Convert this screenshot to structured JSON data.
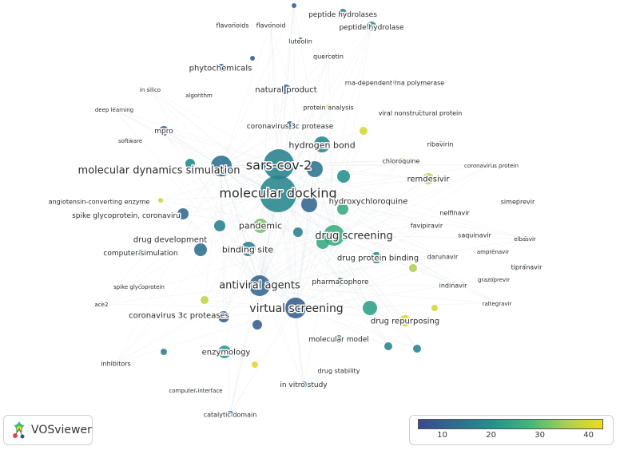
{
  "app": "VOSviewer",
  "colors": {
    "viridis": [
      "#3b4a8f",
      "#2f6c8e",
      "#21918c",
      "#3fb77b",
      "#a7cf54",
      "#f0dc1e"
    ],
    "link": "#cfd6dc"
  },
  "legend": {
    "min": 5,
    "max": 43,
    "ticks": [
      "10",
      "20",
      "30",
      "40"
    ]
  },
  "nodes": [
    {
      "id": "molecular-docking",
      "label": "molecular docking",
      "v": 18
    },
    {
      "id": "sars-cov-2",
      "label": "sars-cov-2",
      "v": 17
    },
    {
      "id": "molecular-dynamics-simulation",
      "label": "molecular dynamics simulation",
      "v": 13
    },
    {
      "id": "virtual-screening",
      "label": "virtual screening",
      "v": 10
    },
    {
      "id": "antiviral-agents",
      "label": "antiviral agents",
      "v": 11
    },
    {
      "id": "drug-screening",
      "label": "drug screening",
      "v": 26
    },
    {
      "id": "hydrogen-bond",
      "label": "hydrogen bond",
      "v": 18
    },
    {
      "id": "pandemic",
      "label": "pandemic",
      "v": 32
    },
    {
      "id": "binding-site",
      "label": "binding site",
      "v": 17
    },
    {
      "id": "drug-development",
      "label": "drug development",
      "v": 13
    },
    {
      "id": "drug-repurposing",
      "label": "drug repurposing",
      "v": 40
    },
    {
      "id": "hydroxychloroquine",
      "label": "hydroxychloroquine",
      "v": 25
    },
    {
      "id": "remdesivir",
      "label": "remdesivir",
      "v": 38
    },
    {
      "id": "drug-protein-binding",
      "label": "drug protein binding",
      "v": 19
    },
    {
      "id": "coronavirus-3c-proteases",
      "label": "coronavirus 3c proteases",
      "v": 9
    },
    {
      "id": "enzymology",
      "label": "enzymology",
      "v": 22
    },
    {
      "id": "spike-glycoprotein-coronavirus",
      "label": "spike glycoprotein, coronaviru",
      "v": 11
    },
    {
      "id": "computer-simulation",
      "label": "computer simulation",
      "v": 17
    },
    {
      "id": "pharmacophore",
      "label": "pharmacophore",
      "v": 16
    },
    {
      "id": "natural-product",
      "label": "natural product",
      "v": 11
    },
    {
      "id": "coronavirus-3c-protease",
      "label": "coronavirus 3c protease",
      "v": 12
    },
    {
      "id": "phytochemicals",
      "label": "phytochemicals",
      "v": 10
    },
    {
      "id": "mpro",
      "label": "mpro",
      "v": 9
    },
    {
      "id": "peptide-hydrolases",
      "label": "peptide hydrolases",
      "v": 16
    },
    {
      "id": "peptide-hydrolase",
      "label": "peptide hydrolase",
      "v": 19
    },
    {
      "id": "flavonoids",
      "label": "flavonoids",
      "v": 8
    },
    {
      "id": "flavonoid",
      "label": "flavonoid",
      "v": 9
    },
    {
      "id": "luteolin",
      "label": "luteolin",
      "v": 8
    },
    {
      "id": "quercetin",
      "label": "quercetin",
      "v": 9
    },
    {
      "id": "rna-dependent-rna-polymerase",
      "label": "rna-dependent rna polymerase",
      "v": 12
    },
    {
      "id": "protein-analysis",
      "label": "protein analysis",
      "v": 41
    },
    {
      "id": "viral-nonstructural-protein",
      "label": "viral nonstructural protein",
      "v": 13
    },
    {
      "id": "in-silico",
      "label": "in silico",
      "v": 8
    },
    {
      "id": "algorithm",
      "label": "algorithm",
      "v": 16
    },
    {
      "id": "deep-learning",
      "label": "deep learning",
      "v": 27
    },
    {
      "id": "software",
      "label": "software",
      "v": 30
    },
    {
      "id": "chloroquine",
      "label": "chloroquine",
      "v": 38
    },
    {
      "id": "ribavirin",
      "label": "ribavirin",
      "v": 9
    },
    {
      "id": "coronavirus-protein",
      "label": "coronavirus protein",
      "v": 9
    },
    {
      "id": "simeprevir",
      "label": "simeprevir",
      "v": 28
    },
    {
      "id": "angiotensin-converting-enzyme",
      "label": "angiotensin-converting enzyme",
      "v": 39
    },
    {
      "id": "nelfinavir",
      "label": "nelfinavir",
      "v": 18
    },
    {
      "id": "favipiravir",
      "label": "favipiravir",
      "v": 39
    },
    {
      "id": "saquinavir",
      "label": "saquinavir",
      "v": 24
    },
    {
      "id": "elbasvir",
      "label": "elbasvir",
      "v": 20
    },
    {
      "id": "amprenavir",
      "label": "amprenavir",
      "v": 18
    },
    {
      "id": "darunavir",
      "label": "darunavir",
      "v": 40
    },
    {
      "id": "tipranavir",
      "label": "tipranavir",
      "v": 26
    },
    {
      "id": "indinavir",
      "label": "indinavir",
      "v": 17
    },
    {
      "id": "grazoprevir",
      "label": "grazoprevir",
      "v": 13
    },
    {
      "id": "raltegravir",
      "label": "raltegravir",
      "v": 38
    },
    {
      "id": "spike-glycoprotein",
      "label": "spike glycoprotein",
      "v": 9
    },
    {
      "id": "ace2",
      "label": "ace2",
      "v": 24
    },
    {
      "id": "molecular-model",
      "label": "molecular model",
      "v": 16
    },
    {
      "id": "inhibitors",
      "label": "inhibitors",
      "v": 9
    },
    {
      "id": "drug-stability",
      "label": "drug stability",
      "v": 16
    },
    {
      "id": "in-vitro-study",
      "label": "in vitro study",
      "v": 13
    },
    {
      "id": "computer-interface",
      "label": "computer interface",
      "v": 20
    },
    {
      "id": "catalytic-domain",
      "label": "catalytic domain",
      "v": 11
    },
    {
      "id": "unlabeled-a",
      "label": "",
      "v": 11
    },
    {
      "id": "unlabeled-b",
      "label": "",
      "v": 14
    },
    {
      "id": "unlabeled-c",
      "label": "",
      "v": 20
    },
    {
      "id": "unlabeled-d",
      "label": "",
      "v": 40
    },
    {
      "id": "unlabeled-e",
      "label": "",
      "v": 36
    },
    {
      "id": "unlabeled-f",
      "label": "",
      "v": 23
    },
    {
      "id": "unlabeled-g",
      "label": "",
      "v": 40
    },
    {
      "id": "unlabeled-h",
      "label": "",
      "v": 38
    },
    {
      "id": "unlabeled-i",
      "label": "",
      "v": 41
    },
    {
      "id": "unlabeled-j",
      "label": "",
      "v": 9
    },
    {
      "id": "unlabeled-k",
      "label": "",
      "v": 18
    },
    {
      "id": "unlabeled-l",
      "label": "",
      "v": 17
    },
    {
      "id": "unlabeled-m",
      "label": "",
      "v": 17
    },
    {
      "id": "unlabeled-n",
      "label": "",
      "v": 9
    },
    {
      "id": "unlabeled-o",
      "label": "",
      "v": 9
    },
    {
      "id": "unlabeled-p",
      "label": "",
      "v": 17
    },
    {
      "id": "unlabeled-q",
      "label": "",
      "v": 25
    },
    {
      "id": "unlabeled-r",
      "label": "",
      "v": 17
    },
    {
      "id": "unlabeled-s",
      "label": "",
      "v": 16
    }
  ]
}
